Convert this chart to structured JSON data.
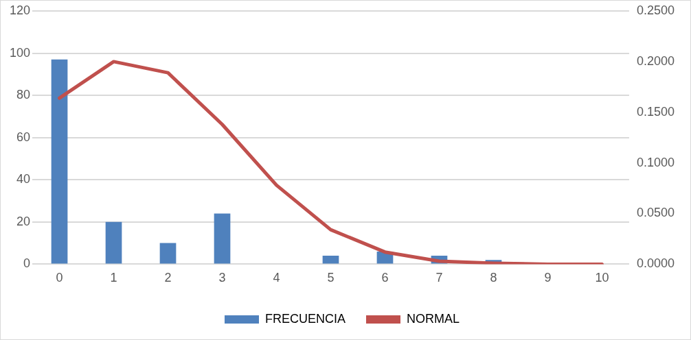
{
  "chart_data": {
    "type": "bar",
    "categories": [
      "0",
      "1",
      "2",
      "3",
      "4",
      "5",
      "6",
      "7",
      "8",
      "9",
      "10"
    ],
    "series": [
      {
        "name": "FRECUENCIA",
        "color": "#4f81bd",
        "values": [
          97,
          20,
          10,
          24,
          0,
          4,
          6,
          4,
          2,
          0,
          0
        ]
      },
      {
        "name": "NORMAL",
        "type": "line",
        "axis": "y2",
        "color": "#c0504d",
        "values": [
          0.164,
          0.2,
          0.189,
          0.138,
          0.078,
          0.034,
          0.012,
          0.003,
          0.001,
          0,
          0
        ]
      }
    ],
    "ylim": [
      0,
      120
    ],
    "yticks": [
      0,
      20,
      40,
      60,
      80,
      100,
      120
    ],
    "y2lim": [
      0,
      0.25
    ],
    "y2ticks": [
      {
        "value": 0,
        "label": "0.0000"
      },
      {
        "value": 0.05,
        "label": "0.0500"
      },
      {
        "value": 0.1,
        "label": "0.1000"
      },
      {
        "value": 0.15,
        "label": "0.1500"
      },
      {
        "value": 0.2,
        "label": "0.2000"
      },
      {
        "value": 0.25,
        "label": "0.2500"
      }
    ],
    "grid": "y",
    "legend": "bottom"
  }
}
